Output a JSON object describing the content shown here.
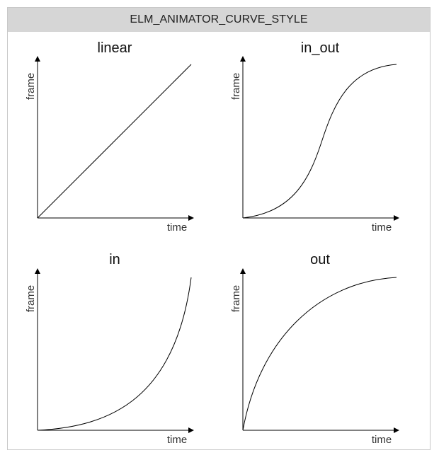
{
  "header": {
    "title": "ELM_ANIMATOR_CURVE_STYLE"
  },
  "panels": [
    {
      "title": "linear",
      "style": "linear",
      "xlabel": "time",
      "ylabel": "frame"
    },
    {
      "title": "in_out",
      "style": "in_out",
      "xlabel": "time",
      "ylabel": "frame"
    },
    {
      "title": "in",
      "style": "in",
      "xlabel": "time",
      "ylabel": "frame"
    },
    {
      "title": "out",
      "style": "out",
      "xlabel": "time",
      "ylabel": "frame"
    }
  ],
  "colors": {
    "header_background": "#d6d6d6",
    "border": "#c8c8c8",
    "line": "#000000",
    "label_text": "#333333"
  }
}
